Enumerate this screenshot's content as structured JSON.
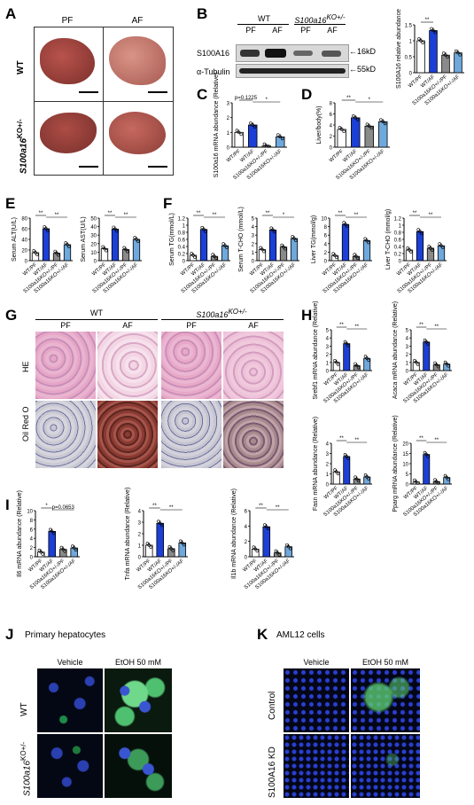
{
  "panels": {
    "A": "A",
    "B": "B",
    "C": "C",
    "D": "D",
    "E": "E",
    "F": "F",
    "G": "G",
    "H": "H",
    "I": "I",
    "J": "J",
    "K": "K"
  },
  "groups": {
    "pf": "PF",
    "af": "AF",
    "wt": "WT",
    "ko": "S100a16",
    "ko_sup": "KO+/-",
    "ko_pf": "S100a16KO+/-/PF",
    "ko_af": "S100a16KO+/-/AF",
    "wtpf": "WT/PF",
    "wtaf": "WT/AF"
  },
  "panelA": {
    "col1": "PF",
    "col2": "AF",
    "row1": "WT",
    "row2": "S100a16",
    "row2_sup": "KO+/-"
  },
  "panelB": {
    "wt": "WT",
    "ko": "S100a16",
    "ko_sup": "KO+/-",
    "pf1": "PF",
    "af1": "AF",
    "pf2": "PF",
    "af2": "AF",
    "band1": "S100A16",
    "band2": "α-Tubulin",
    "kd1": "16kD",
    "kd2": "55kD"
  },
  "panelG": {
    "wt": "WT",
    "ko": "S100a16",
    "ko_sup": "KO+/-",
    "pf1": "PF",
    "af1": "AF",
    "pf2": "PF",
    "af2": "AF",
    "row1": "HE",
    "row2": "Oil Red O"
  },
  "panelJ": {
    "title": "Primary hepatocytes",
    "c1": "Vehicle",
    "c2": "EtOH 50 mM",
    "r1": "WT",
    "r2": "S100a16",
    "r2_sup": "KO+/-"
  },
  "panelK": {
    "title": "AML12 cells",
    "c1": "Vehicle",
    "c2": "EtOH 50 mM",
    "r1": "Control",
    "r2": "S100A16 KD"
  },
  "colors": {
    "wtpf": "#ffffff",
    "wtaf": "#1c3fd6",
    "kopf": "#8a8a8a",
    "koaf": "#6fa8dc",
    "axis": "#000000"
  },
  "chart_data": [
    {
      "id": "B_quant",
      "type": "bar",
      "ylabel": "S100A16 relative abundance",
      "ylim": [
        0,
        1.5
      ],
      "yticks": [
        0,
        0.5,
        1.0,
        1.5
      ],
      "categories": [
        "WT/PF",
        "WT/AF",
        "S100a16KO+/-/PF",
        "S100a16KO+/-/AF"
      ],
      "values": [
        1.0,
        1.32,
        0.55,
        0.62
      ],
      "sig": [
        {
          "a": 0,
          "b": 1,
          "label": "**"
        }
      ]
    },
    {
      "id": "C",
      "type": "bar",
      "ylabel": "S100a16 mRNA abundance (Relative)",
      "ylim": [
        0,
        3
      ],
      "yticks": [
        0,
        1,
        2,
        3
      ],
      "categories": [
        "WT/PF",
        "WT/AF",
        "S100a16KO+/-/PF",
        "S100a16KO+/-/AF"
      ],
      "values": [
        1.0,
        1.5,
        0.08,
        0.7
      ],
      "sig": [
        {
          "a": 0,
          "b": 1,
          "label": "p=0.1225"
        },
        {
          "a": 1,
          "b": 3,
          "label": "*"
        }
      ]
    },
    {
      "id": "D",
      "type": "bar",
      "ylabel": "Liver/body(%)",
      "ylim": [
        0,
        8
      ],
      "yticks": [
        0,
        2,
        4,
        6,
        8
      ],
      "categories": [
        "WT/PF",
        "WT/AF",
        "S100a16KO+/-/PF",
        "S100a16KO+/-/AF"
      ],
      "values": [
        3.2,
        5.3,
        3.8,
        4.6
      ],
      "sig": [
        {
          "a": 0,
          "b": 1,
          "label": "**"
        },
        {
          "a": 1,
          "b": 3,
          "label": "*"
        }
      ]
    },
    {
      "id": "E1",
      "type": "bar",
      "ylabel": "Serum ALT(U/L)",
      "ylim": [
        0,
        80
      ],
      "yticks": [
        0,
        20,
        40,
        60,
        80
      ],
      "categories": [
        "WT/PF",
        "WT/AF",
        "S100a16KO+/-/PF",
        "S100a16KO+/-/AF"
      ],
      "values": [
        15,
        60,
        14,
        30
      ],
      "sig": [
        {
          "a": 0,
          "b": 1,
          "label": "**"
        },
        {
          "a": 1,
          "b": 3,
          "label": "**"
        }
      ]
    },
    {
      "id": "E2",
      "type": "bar",
      "ylabel": "Serum AST(U/L)",
      "ylim": [
        0,
        50
      ],
      "yticks": [
        0,
        10,
        20,
        30,
        40,
        50
      ],
      "categories": [
        "WT/PF",
        "WT/AF",
        "S100a16KO+/-/PF",
        "S100a16KO+/-/AF"
      ],
      "values": [
        14,
        37,
        13,
        25
      ],
      "sig": [
        {
          "a": 0,
          "b": 1,
          "label": "**"
        },
        {
          "a": 1,
          "b": 3,
          "label": "**"
        }
      ]
    },
    {
      "id": "F1",
      "type": "bar",
      "ylabel": "Serum TG(mmol/L)",
      "ylim": [
        0,
        1.2
      ],
      "yticks": [
        0,
        0.2,
        0.4,
        0.6,
        0.8,
        1.0,
        1.2
      ],
      "categories": [
        "WT/PF",
        "WT/AF",
        "S100a16KO+/-/PF",
        "S100a16KO+/-/AF"
      ],
      "values": [
        0.15,
        0.88,
        0.12,
        0.42
      ],
      "sig": [
        {
          "a": 0,
          "b": 1,
          "label": "**"
        },
        {
          "a": 1,
          "b": 3,
          "label": "**"
        }
      ]
    },
    {
      "id": "F2",
      "type": "bar",
      "ylabel": "Serum T-CHO (mmol/L)",
      "ylim": [
        0,
        5
      ],
      "yticks": [
        0,
        1,
        2,
        3,
        4,
        5
      ],
      "categories": [
        "WT/PF",
        "WT/AF",
        "S100a16KO+/-/PF",
        "S100a16KO+/-/AF"
      ],
      "values": [
        1.3,
        3.6,
        1.6,
        2.6
      ],
      "sig": [
        {
          "a": 0,
          "b": 1,
          "label": "**"
        },
        {
          "a": 1,
          "b": 3,
          "label": "*"
        }
      ]
    },
    {
      "id": "F3",
      "type": "bar",
      "ylabel": "Liver TG(mmol/g)",
      "ylim": [
        0,
        10
      ],
      "yticks": [
        0,
        2,
        4,
        6,
        8,
        10
      ],
      "categories": [
        "WT/PF",
        "WT/AF",
        "S100a16KO+/-/PF",
        "S100a16KO+/-/AF"
      ],
      "values": [
        1.2,
        8.5,
        1.0,
        4.7
      ],
      "sig": [
        {
          "a": 0,
          "b": 1,
          "label": "**"
        },
        {
          "a": 1,
          "b": 3,
          "label": "**"
        }
      ]
    },
    {
      "id": "F4",
      "type": "bar",
      "ylabel": "Liver T-CHO (mmol/g)",
      "ylim": [
        0,
        1.2
      ],
      "yticks": [
        0,
        0.2,
        0.4,
        0.6,
        0.8,
        1.0,
        1.2
      ],
      "categories": [
        "WT/PF",
        "WT/AF",
        "S100a16KO+/-/PF",
        "S100a16KO+/-/AF"
      ],
      "values": [
        0.3,
        0.82,
        0.35,
        0.42
      ],
      "sig": [
        {
          "a": 0,
          "b": 1,
          "label": "**"
        },
        {
          "a": 1,
          "b": 3,
          "label": "**"
        }
      ]
    },
    {
      "id": "H1",
      "type": "bar",
      "ylabel": "Srebf1 mRNA abundance (Relative)",
      "ylim": [
        0,
        5
      ],
      "yticks": [
        0,
        1,
        2,
        3,
        4,
        5
      ],
      "categories": [
        "WT/PF",
        "WT/AF",
        "S100a16KO+/-/PF",
        "S100a16KO+/-/AF"
      ],
      "values": [
        1.0,
        3.3,
        0.6,
        1.5
      ],
      "sig": [
        {
          "a": 0,
          "b": 1,
          "label": "**"
        },
        {
          "a": 1,
          "b": 3,
          "label": "**"
        }
      ]
    },
    {
      "id": "H2",
      "type": "bar",
      "ylabel": "Acaca mRNA abundance (Relative)",
      "ylim": [
        0,
        5
      ],
      "yticks": [
        0,
        1,
        2,
        3,
        4,
        5
      ],
      "categories": [
        "WT/PF",
        "WT/AF",
        "S100a16KO+/-/PF",
        "S100a16KO+/-/AF"
      ],
      "values": [
        1.0,
        3.5,
        0.7,
        0.8
      ],
      "sig": [
        {
          "a": 0,
          "b": 1,
          "label": "**"
        },
        {
          "a": 1,
          "b": 3,
          "label": "**"
        }
      ]
    },
    {
      "id": "H3",
      "type": "bar",
      "ylabel": "Fasn mRNA abundance (Relative)",
      "ylim": [
        0,
        4
      ],
      "yticks": [
        0,
        1,
        2,
        3,
        4
      ],
      "categories": [
        "WT/PF",
        "WT/AF",
        "S100a16KO+/-/PF",
        "S100a16KO+/-/AF"
      ],
      "values": [
        1.2,
        2.7,
        0.5,
        0.7
      ],
      "sig": [
        {
          "a": 0,
          "b": 1,
          "label": "**"
        },
        {
          "a": 1,
          "b": 3,
          "label": "**"
        }
      ]
    },
    {
      "id": "H4",
      "type": "bar",
      "ylabel": "Pparg mRNA abundance (Relative)",
      "ylim": [
        0,
        20
      ],
      "yticks": [
        0,
        5,
        10,
        15,
        20
      ],
      "categories": [
        "WT/PF",
        "WT/AF",
        "S100a16KO+/-/PF",
        "S100a16KO+/-/AF"
      ],
      "values": [
        1.0,
        14.5,
        1.2,
        3.2
      ],
      "sig": [
        {
          "a": 0,
          "b": 1,
          "label": "**"
        },
        {
          "a": 1,
          "b": 3,
          "label": "**"
        }
      ]
    },
    {
      "id": "I1",
      "type": "bar",
      "ylabel": "Il6 mRNA abundance (Relative)",
      "ylim": [
        0,
        10
      ],
      "yticks": [
        0,
        2,
        4,
        6,
        8,
        10
      ],
      "categories": [
        "WT/PF",
        "WT/AF",
        "S100a16KO+/-/PF",
        "S100a16KO+/-/AF"
      ],
      "values": [
        1.0,
        5.5,
        1.6,
        1.9
      ],
      "sig": [
        {
          "a": 0,
          "b": 1,
          "label": "*"
        },
        {
          "a": 1,
          "b": 3,
          "label": "p=0.0653"
        }
      ]
    },
    {
      "id": "I2",
      "type": "bar",
      "ylabel": "Tnfa mRNA abundance (Relative)",
      "ylim": [
        0,
        4
      ],
      "yticks": [
        0,
        1,
        2,
        3,
        4
      ],
      "categories": [
        "WT/PF",
        "WT/AF",
        "S100a16KO+/-/PF",
        "S100a16KO+/-/AF"
      ],
      "values": [
        1.0,
        2.9,
        0.7,
        1.2
      ],
      "sig": [
        {
          "a": 0,
          "b": 1,
          "label": "**"
        },
        {
          "a": 1,
          "b": 3,
          "label": "**"
        }
      ]
    },
    {
      "id": "I3",
      "type": "bar",
      "ylabel": "Il1b mRNA abundance (Relative)",
      "ylim": [
        0,
        6
      ],
      "yticks": [
        0,
        2,
        4,
        6
      ],
      "categories": [
        "WT/PF",
        "WT/AF",
        "S100a16KO+/-/PF",
        "S100a16KO+/-/AF"
      ],
      "values": [
        1.0,
        3.9,
        0.5,
        1.3
      ],
      "sig": [
        {
          "a": 0,
          "b": 1,
          "label": "**"
        },
        {
          "a": 1,
          "b": 3,
          "label": "**"
        }
      ]
    }
  ]
}
